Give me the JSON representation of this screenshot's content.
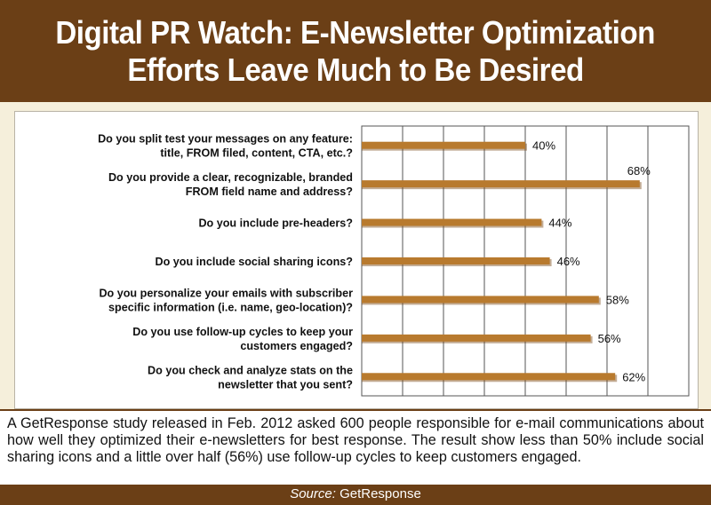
{
  "title": {
    "line1": "Digital PR Watch: E-Newsletter Optimization",
    "line2": "Efforts Leave Much to Be Desired"
  },
  "caption": "A GetResponse study released in Feb. 2012 asked 600 people responsible for e-mail communications about how well they optimized their e-newsletters for best response. The result show less than 50% include social sharing icons and a little over half (56%) use follow-up cycles to keep customers engaged.",
  "source": {
    "label": "Source:",
    "name": "GetResponse"
  },
  "colors": {
    "bar": "#b87a2e",
    "bar_dark": "#7a4a16",
    "header": "#6b3f16",
    "panel": "#f5efdb"
  },
  "chart_data": {
    "type": "bar",
    "orientation": "horizontal",
    "categories": [
      [
        "Do you split test your messages on any feature:",
        "title, FROM filed, content, CTA, etc.?"
      ],
      [
        "Do you provide a clear, recognizable, branded",
        "FROM field name and address?"
      ],
      [
        "Do you include pre-headers?"
      ],
      [
        "Do you include social sharing icons?"
      ],
      [
        "Do you personalize your emails with subscriber",
        "specific information (i.e. name, geo-location)?"
      ],
      [
        "Do you use follow-up cycles to keep your",
        "customers engaged?"
      ],
      [
        "Do you check and analyze stats on the",
        "newsletter that you sent?"
      ]
    ],
    "values": [
      40,
      68,
      44,
      46,
      58,
      56,
      62
    ],
    "labels": [
      "40%",
      "68%",
      "44%",
      "46%",
      "58%",
      "56%",
      "62%"
    ],
    "xlim": [
      0,
      80
    ],
    "grid": true,
    "xlabel": "",
    "ylabel": ""
  }
}
